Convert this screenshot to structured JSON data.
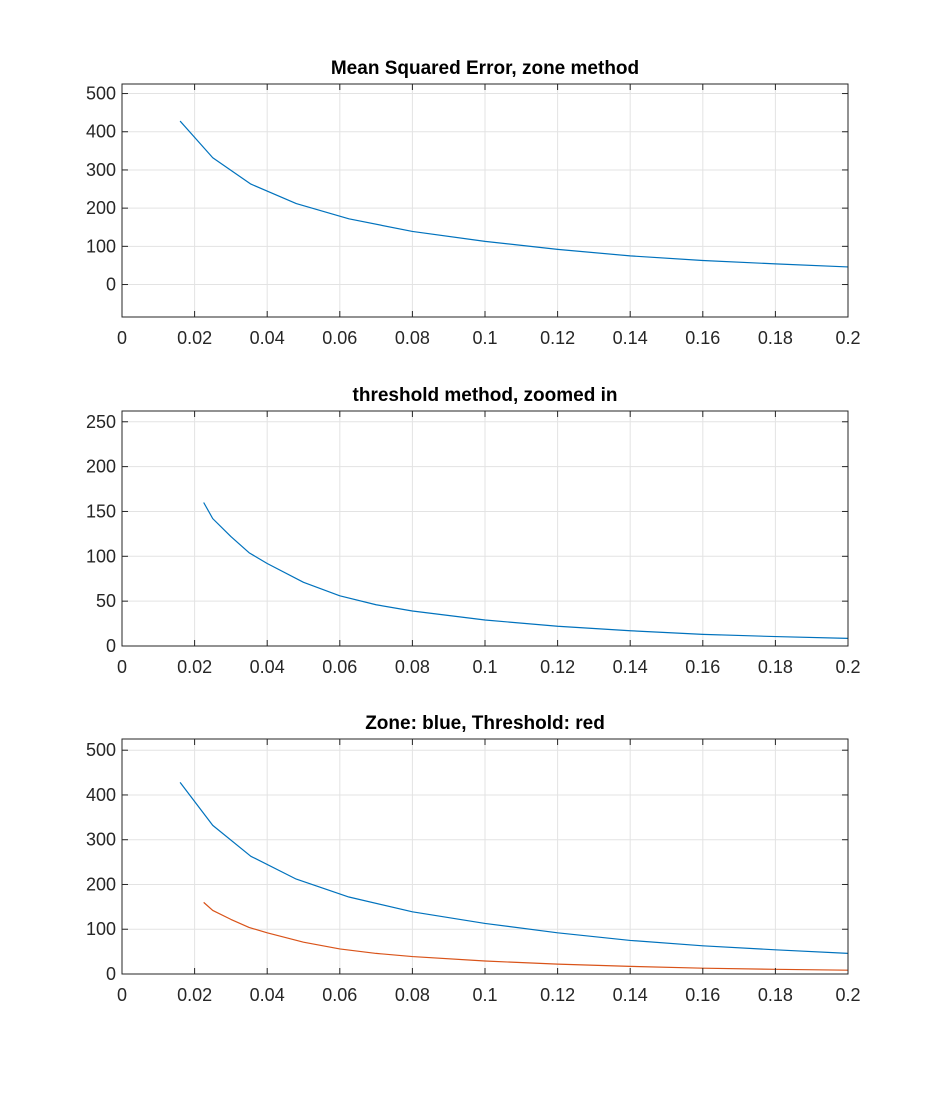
{
  "chart_data": [
    {
      "type": "line",
      "title": "Mean Squared Error, zone method",
      "xlabel": "",
      "ylabel": "",
      "xlim": [
        0,
        0.2
      ],
      "ylim": [
        -85,
        525
      ],
      "xticks": [
        0,
        0.02,
        0.04,
        0.06,
        0.08,
        0.1,
        0.12,
        0.14,
        0.16,
        0.18,
        0.2
      ],
      "xtick_labels": [
        "0",
        "0.02",
        "0.04",
        "0.06",
        "0.08",
        "0.1",
        "0.12",
        "0.14",
        "0.16",
        "0.18",
        "0.2"
      ],
      "yticks": [
        0,
        100,
        200,
        300,
        400,
        500
      ],
      "ytick_labels": [
        "0",
        "100",
        "200",
        "300",
        "400",
        "500"
      ],
      "grid": true,
      "series": [
        {
          "color": "#0072BD",
          "x": [
            0.016,
            0.025,
            0.0355,
            0.048,
            0.0625,
            0.08,
            0.1,
            0.12,
            0.14,
            0.16,
            0.18,
            0.2
          ],
          "y": [
            428,
            332,
            263,
            212,
            172,
            139,
            113,
            92,
            75,
            63,
            54,
            46
          ]
        }
      ]
    },
    {
      "type": "line",
      "title": "threshold method, zoomed in",
      "xlabel": "",
      "ylabel": "",
      "xlim": [
        0,
        0.2
      ],
      "ylim": [
        0,
        262
      ],
      "xticks": [
        0,
        0.02,
        0.04,
        0.06,
        0.08,
        0.1,
        0.12,
        0.14,
        0.16,
        0.18,
        0.2
      ],
      "xtick_labels": [
        "0",
        "0.02",
        "0.04",
        "0.06",
        "0.08",
        "0.1",
        "0.12",
        "0.14",
        "0.16",
        "0.18",
        "0.2"
      ],
      "yticks": [
        0,
        50,
        100,
        150,
        200,
        250
      ],
      "ytick_labels": [
        "0",
        "50",
        "100",
        "150",
        "200",
        "250"
      ],
      "grid": true,
      "series": [
        {
          "color": "#0072BD",
          "x": [
            0.0225,
            0.025,
            0.03,
            0.035,
            0.04,
            0.05,
            0.06,
            0.07,
            0.08,
            0.1,
            0.12,
            0.14,
            0.16,
            0.18,
            0.2
          ],
          "y": [
            160,
            142,
            122,
            104,
            92,
            71,
            56,
            46,
            39,
            29,
            22,
            17,
            13,
            10.5,
            8.5
          ]
        }
      ]
    },
    {
      "type": "line",
      "title": "Zone: blue, Threshold: red",
      "xlabel": "",
      "ylabel": "",
      "xlim": [
        0,
        0.2
      ],
      "ylim": [
        0,
        525
      ],
      "xticks": [
        0,
        0.02,
        0.04,
        0.06,
        0.08,
        0.1,
        0.12,
        0.14,
        0.16,
        0.18,
        0.2
      ],
      "xtick_labels": [
        "0",
        "0.02",
        "0.04",
        "0.06",
        "0.08",
        "0.1",
        "0.12",
        "0.14",
        "0.16",
        "0.18",
        "0.2"
      ],
      "yticks": [
        0,
        100,
        200,
        300,
        400,
        500
      ],
      "ytick_labels": [
        "0",
        "100",
        "200",
        "300",
        "400",
        "500"
      ],
      "grid": true,
      "series": [
        {
          "color": "#0072BD",
          "x": [
            0.016,
            0.025,
            0.0355,
            0.048,
            0.0625,
            0.08,
            0.1,
            0.12,
            0.14,
            0.16,
            0.18,
            0.2
          ],
          "y": [
            428,
            332,
            263,
            212,
            172,
            139,
            113,
            92,
            75,
            63,
            54,
            46
          ]
        },
        {
          "color": "#D95319",
          "x": [
            0.0225,
            0.025,
            0.03,
            0.035,
            0.04,
            0.05,
            0.06,
            0.07,
            0.08,
            0.1,
            0.12,
            0.14,
            0.16,
            0.18,
            0.2
          ],
          "y": [
            160,
            142,
            122,
            104,
            92,
            71,
            56,
            46,
            39,
            29,
            22,
            17,
            13,
            10.5,
            8.5
          ]
        }
      ]
    }
  ]
}
